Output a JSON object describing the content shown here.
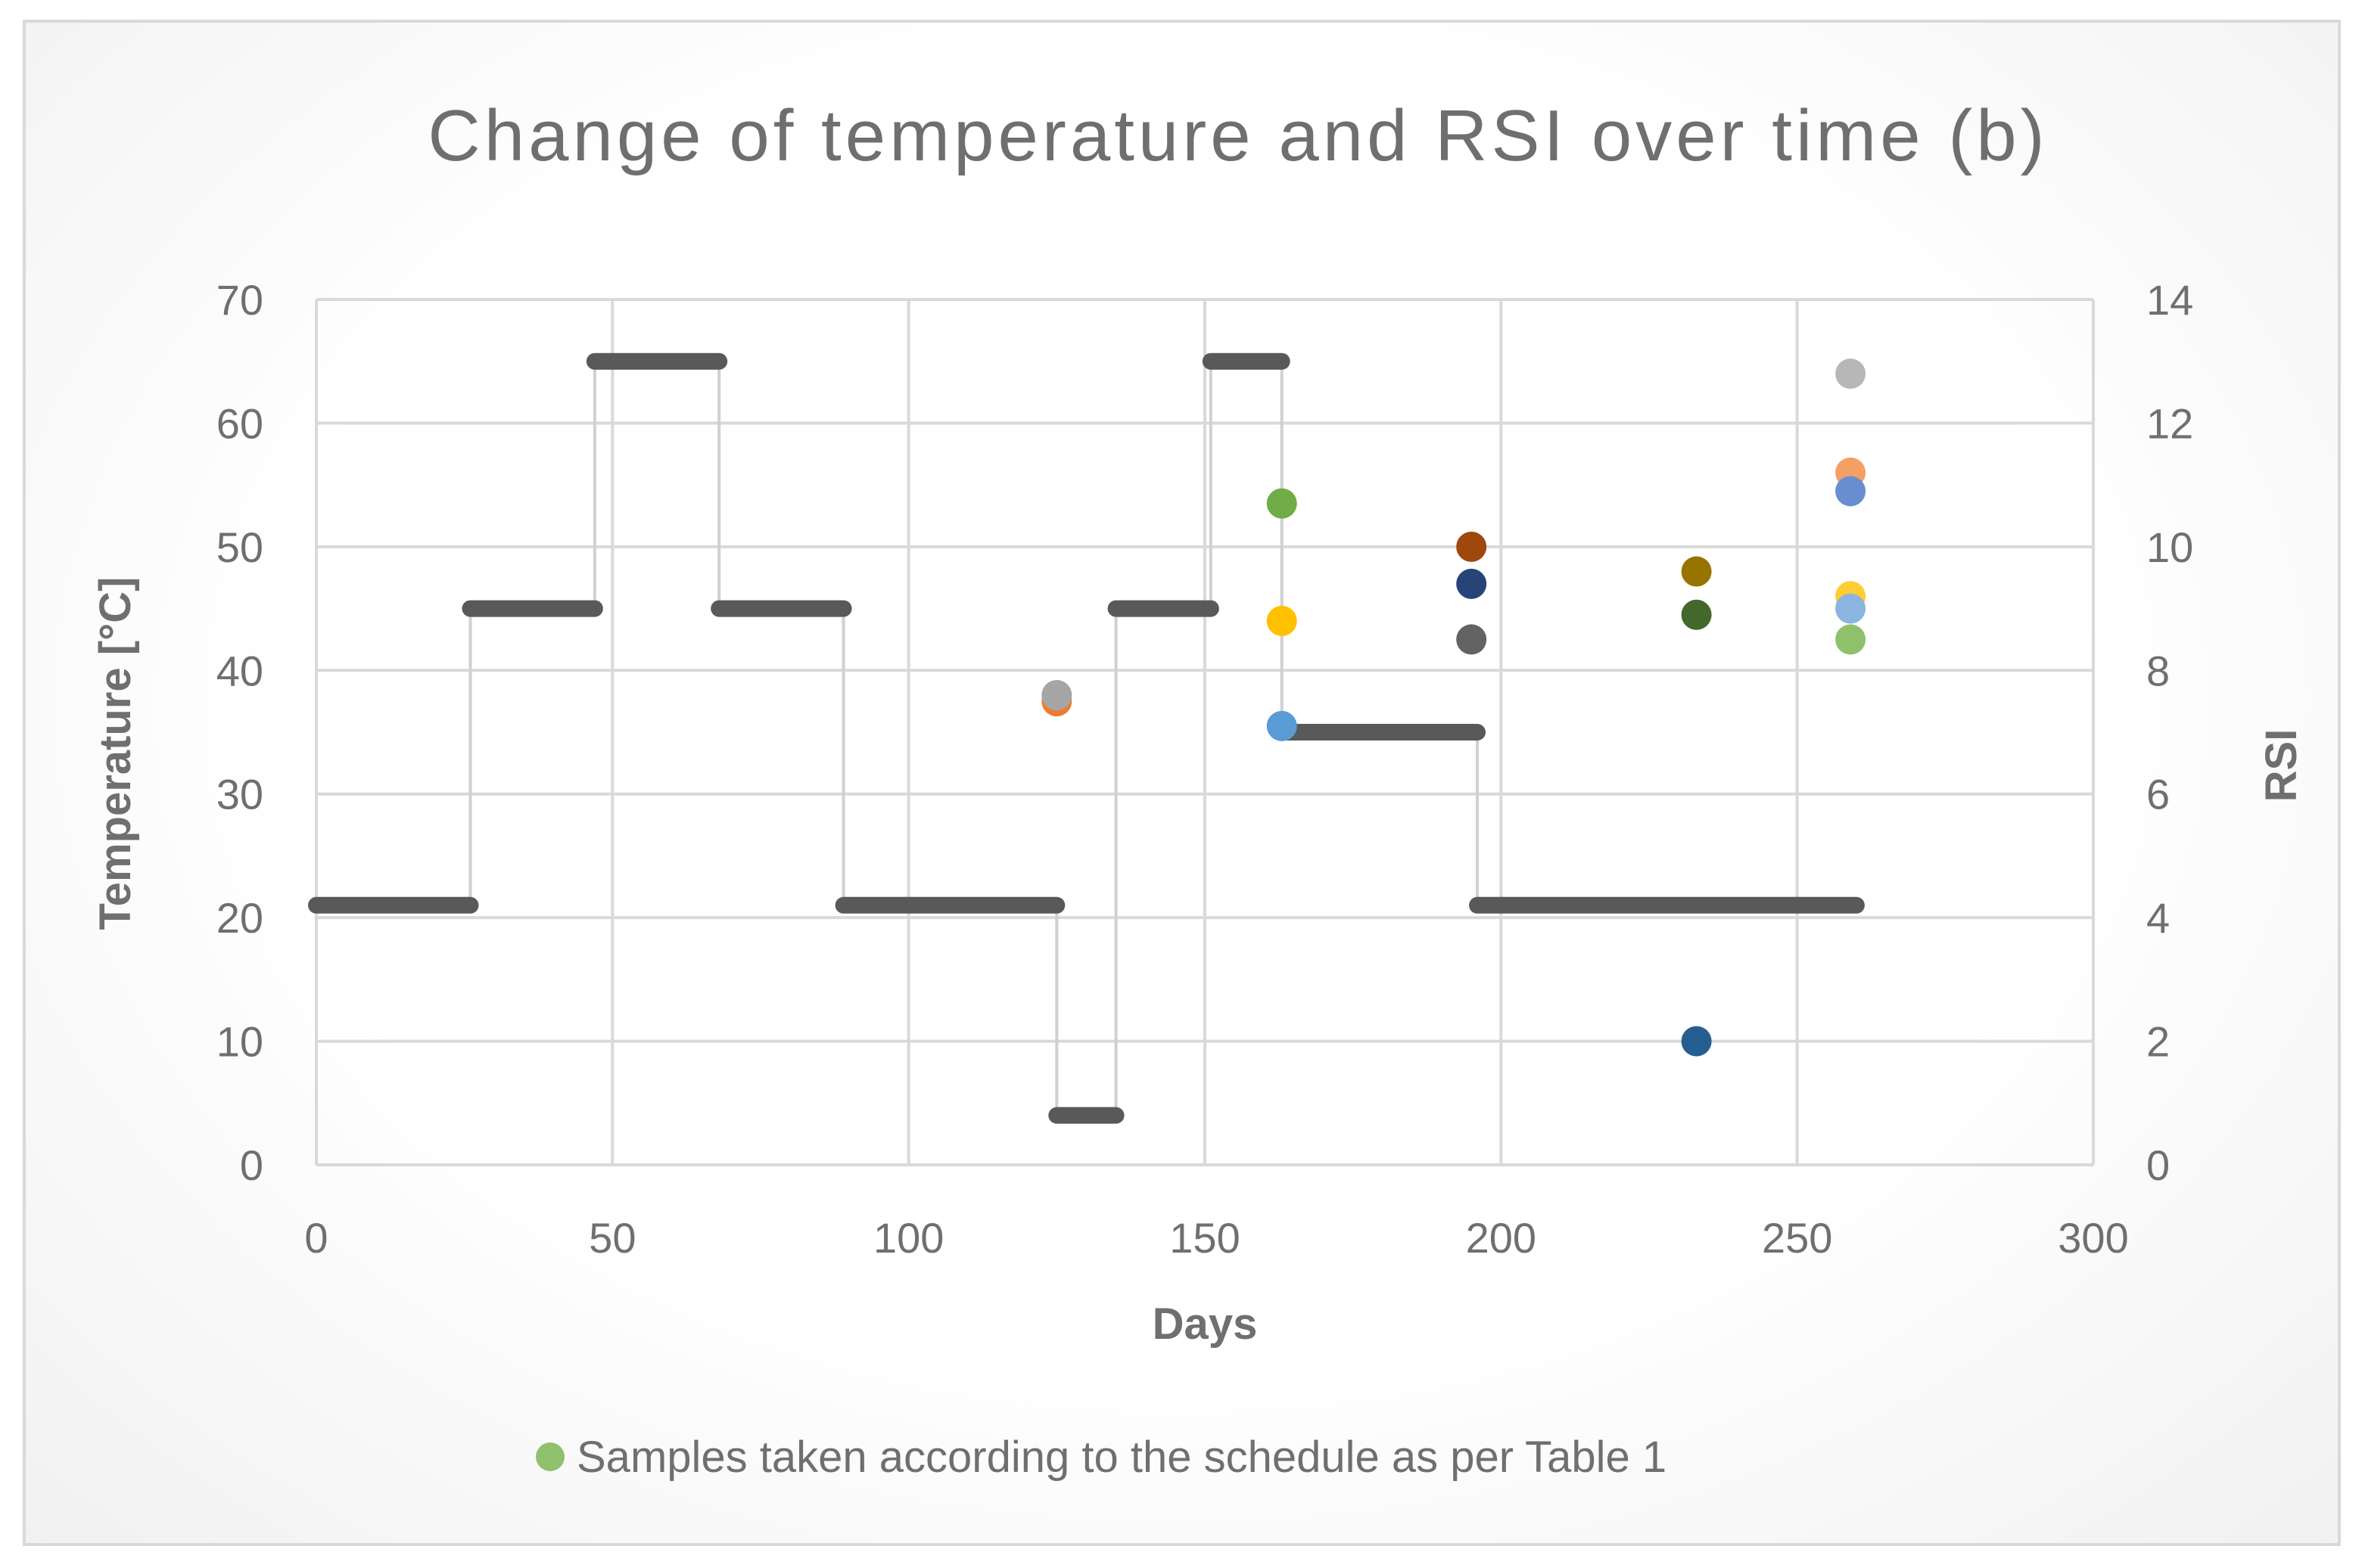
{
  "chart_data": {
    "type": "scatter",
    "title": "Change of temperature and RSI over time (b)",
    "xlabel": "Days",
    "ylabel": "Temperature [°C]",
    "y2label": "RSI",
    "xlim": [
      0,
      300
    ],
    "ylim": [
      0,
      70
    ],
    "y2lim": [
      0,
      14
    ],
    "xticks": [
      0,
      50,
      100,
      150,
      200,
      250,
      300
    ],
    "yticks": [
      0,
      10,
      20,
      30,
      40,
      50,
      60,
      70
    ],
    "y2ticks": [
      0,
      2,
      4,
      6,
      8,
      10,
      12,
      14
    ],
    "grid": true,
    "legend_position": "bottom",
    "temperature_series": {
      "name": "Temperature",
      "color": "#595959",
      "segments": [
        {
          "x_start": 0,
          "x_end": 26,
          "y": 21
        },
        {
          "x_start": 26,
          "x_end": 47,
          "y": 45
        },
        {
          "x_start": 47,
          "x_end": 68,
          "y": 65
        },
        {
          "x_start": 68,
          "x_end": 89,
          "y": 45
        },
        {
          "x_start": 89,
          "x_end": 125,
          "y": 21
        },
        {
          "x_start": 125,
          "x_end": 135,
          "y": 4
        },
        {
          "x_start": 135,
          "x_end": 151,
          "y": 45
        },
        {
          "x_start": 151,
          "x_end": 163,
          "y": 65
        },
        {
          "x_start": 163,
          "x_end": 196,
          "y": 35
        },
        {
          "x_start": 196,
          "x_end": 260,
          "y": 21
        }
      ]
    },
    "rsi_samples": [
      {
        "x": 125,
        "rsi": 7.5,
        "color": "#ed7d31"
      },
      {
        "x": 125,
        "rsi": 7.6,
        "color": "#a5a5a5"
      },
      {
        "x": 163,
        "rsi": 10.7,
        "color": "#70ad47"
      },
      {
        "x": 163,
        "rsi": 8.8,
        "color": "#ffc000"
      },
      {
        "x": 163,
        "rsi": 7.1,
        "color": "#5b9bd5"
      },
      {
        "x": 195,
        "rsi": 10.0,
        "color": "#9e480e"
      },
      {
        "x": 195,
        "rsi": 9.4,
        "color": "#264478"
      },
      {
        "x": 195,
        "rsi": 8.5,
        "color": "#636363"
      },
      {
        "x": 233,
        "rsi": 9.6,
        "color": "#997300"
      },
      {
        "x": 233,
        "rsi": 8.9,
        "color": "#43682b"
      },
      {
        "x": 233,
        "rsi": 2.0,
        "color": "#255e91"
      },
      {
        "x": 259,
        "rsi": 12.8,
        "color": "#b7b7b7"
      },
      {
        "x": 259,
        "rsi": 11.2,
        "color": "#f4a064"
      },
      {
        "x": 259,
        "rsi": 10.9,
        "color": "#698ed0"
      },
      {
        "x": 259,
        "rsi": 9.2,
        "color": "#ffcd33"
      },
      {
        "x": 259,
        "rsi": 9.0,
        "color": "#8cb4e0"
      },
      {
        "x": 259,
        "rsi": 8.5,
        "color": "#8fc16c"
      }
    ],
    "legend": [
      {
        "label": "Samples taken according to the schedule as per Table 1",
        "color": "#8fc16c"
      }
    ]
  }
}
